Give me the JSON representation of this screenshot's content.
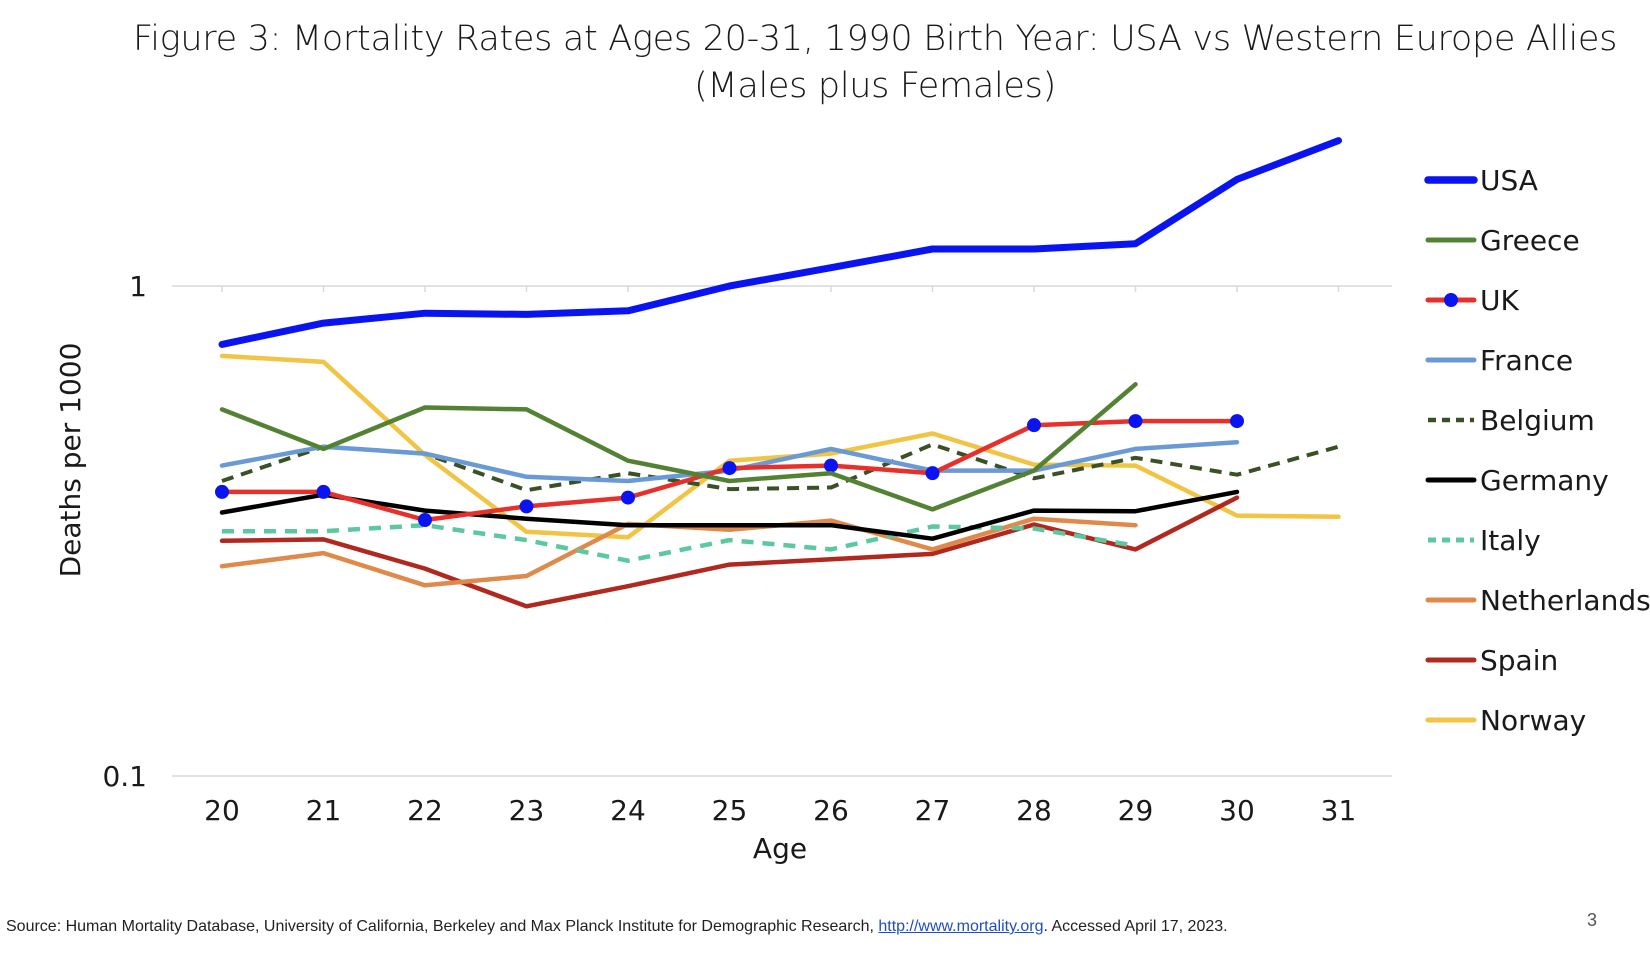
{
  "slide": {
    "title_line1": "Figure 3: Mortality Rates at Ages 20-31, 1990 Birth Year: USA vs Western Europe Allies",
    "title_line2": "(Males plus Females)",
    "source_prefix": "Source: Human Mortality Database, University of California, Berkeley and Max Planck Institute for Demographic Research, ",
    "source_link": "http://www.mortality.org",
    "source_suffix": ". Accessed April 17, 2023.",
    "page_number": "3"
  },
  "chart_data": {
    "type": "line",
    "title": "Figure 3: Mortality Rates at Ages 20-31, 1990 Birth Year: USA vs Western Europe Allies (Males plus Females)",
    "xlabel": "Age",
    "ylabel": "Deaths per 1000",
    "yscale": "log",
    "ylim": [
      0.1,
      2
    ],
    "yticks": [
      {
        "value": 0.1,
        "label": "0.1"
      },
      {
        "value": 1,
        "label": "1"
      }
    ],
    "x": [
      20,
      21,
      22,
      23,
      24,
      25,
      26,
      27,
      28,
      29,
      30,
      31
    ],
    "legend_position": "right",
    "grid": "horizontal at major ticks",
    "series": [
      {
        "name": "USA",
        "color": "#0a14f0",
        "width": 7,
        "dash": "",
        "markers": false,
        "values": [
          0.76,
          0.84,
          0.88,
          0.875,
          0.89,
          1.0,
          1.09,
          1.19,
          1.19,
          1.22,
          1.65,
          1.98
        ]
      },
      {
        "name": "Greece",
        "color": "#548235",
        "width": 4.5,
        "dash": "",
        "markers": false,
        "values": [
          0.56,
          0.465,
          0.565,
          0.56,
          0.44,
          0.4,
          0.415,
          0.35,
          0.42,
          0.63,
          null,
          null
        ]
      },
      {
        "name": "UK",
        "color": "#e8302a",
        "width": 4.5,
        "dash": "",
        "markers": true,
        "marker_color": "#0a14f0",
        "values": [
          0.38,
          0.38,
          0.333,
          0.355,
          0.37,
          0.425,
          0.43,
          0.415,
          0.52,
          0.53,
          0.53,
          null
        ]
      },
      {
        "name": "France",
        "color": "#6a9ad6",
        "width": 4.5,
        "dash": "",
        "markers": false,
        "values": [
          0.43,
          0.47,
          0.455,
          0.408,
          0.4,
          0.42,
          0.465,
          0.42,
          0.42,
          0.465,
          0.48,
          null
        ]
      },
      {
        "name": "Belgium",
        "color": "#3a5026",
        "width": 4,
        "dash": "12,8",
        "markers": false,
        "values": [
          0.4,
          0.47,
          0.455,
          0.383,
          0.415,
          0.385,
          0.388,
          0.475,
          0.405,
          0.446,
          0.412,
          0.47
        ]
      },
      {
        "name": "Germany",
        "color": "#000000",
        "width": 4.5,
        "dash": "",
        "markers": false,
        "values": [
          0.345,
          0.375,
          0.348,
          0.335,
          0.325,
          0.325,
          0.325,
          0.305,
          0.348,
          0.347,
          0.38,
          null
        ]
      },
      {
        "name": "Italy",
        "color": "#5cc8a0",
        "width": 4.5,
        "dash": "12,9",
        "markers": false,
        "values": [
          0.316,
          0.316,
          0.325,
          0.303,
          0.275,
          0.303,
          0.29,
          0.323,
          0.32,
          0.295,
          null,
          null
        ]
      },
      {
        "name": "Netherlands",
        "color": "#df8a4a",
        "width": 4.5,
        "dash": "",
        "markers": false,
        "values": [
          0.268,
          0.285,
          0.245,
          0.256,
          0.327,
          0.318,
          0.332,
          0.29,
          0.335,
          0.325,
          null,
          null
        ]
      },
      {
        "name": "Spain",
        "color": "#b0281e",
        "width": 4.5,
        "dash": "",
        "markers": false,
        "values": [
          0.302,
          0.304,
          0.265,
          0.222,
          0.244,
          0.27,
          0.277,
          0.284,
          0.326,
          0.29,
          0.37,
          null
        ]
      },
      {
        "name": "Norway",
        "color": "#f2c443",
        "width": 4.5,
        "dash": "",
        "markers": false,
        "values": [
          0.72,
          0.7,
          0.452,
          0.315,
          0.307,
          0.44,
          0.455,
          0.5,
          0.432,
          0.43,
          0.34,
          0.338
        ]
      }
    ]
  }
}
